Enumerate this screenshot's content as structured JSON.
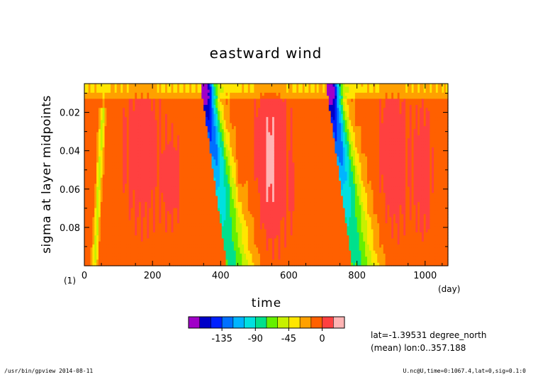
{
  "chart_data": {
    "type": "heatmap",
    "title": "eastward wind",
    "xlabel": "time",
    "xunit": "(day)",
    "ylabel": "sigma at layer midpoints",
    "yunit": "(1)",
    "xlim": [
      0,
      1067
    ],
    "ylim": [
      0.005,
      0.1
    ],
    "y_inverted": true,
    "x_ticks": [
      0,
      200,
      400,
      600,
      800,
      1000
    ],
    "x_tick_labels": [
      "0",
      "200",
      "400",
      "600",
      "800",
      "1000"
    ],
    "y_ticks": [
      0.02,
      0.04,
      0.06,
      0.08
    ],
    "y_tick_labels": [
      "0.02",
      "0.04",
      "0.06",
      "0.08"
    ],
    "colorbar": {
      "levels": [
        -165,
        -150,
        -135,
        -120,
        -105,
        -90,
        -75,
        -60,
        -45,
        -30,
        -15,
        0,
        15
      ],
      "colors": [
        "#a000c8",
        "#0000c8",
        "#0020ff",
        "#0070ff",
        "#00b4ff",
        "#00e0e0",
        "#00e08c",
        "#64f000",
        "#c8f000",
        "#ffe600",
        "#ffa000",
        "#ff6000",
        "#ff4040",
        "#ffb4b4"
      ],
      "tick_values": [
        -135,
        -90,
        -45,
        0
      ],
      "tick_labels": [
        "-135",
        "-90",
        "-45",
        "0"
      ]
    },
    "series": [
      {
        "day": 40,
        "sigma": 0.07,
        "value": -35
      },
      {
        "day": 355,
        "sigma": 0.02,
        "value": -150
      },
      {
        "day": 380,
        "sigma": 0.06,
        "value": -70
      },
      {
        "day": 410,
        "sigma": 0.09,
        "value": -30
      },
      {
        "day": 720,
        "sigma": 0.02,
        "value": -160
      },
      {
        "day": 745,
        "sigma": 0.06,
        "value": -75
      },
      {
        "day": 780,
        "sigma": 0.09,
        "value": -30
      },
      {
        "day": 170,
        "sigma": 0.04,
        "value": 5
      },
      {
        "day": 560,
        "sigma": 0.04,
        "value": 5
      },
      {
        "day": 900,
        "sigma": 0.04,
        "value": 5
      }
    ]
  },
  "info": {
    "lat_line": "lat=-1.39531 degree_north",
    "lon_line": "(mean) lon:0..357.188"
  },
  "footer": {
    "program": "/usr/bin/gpview  2014-08-11",
    "source": "U.nc@U,time=0:1067.4,lat=0,sig=0.1:0"
  }
}
